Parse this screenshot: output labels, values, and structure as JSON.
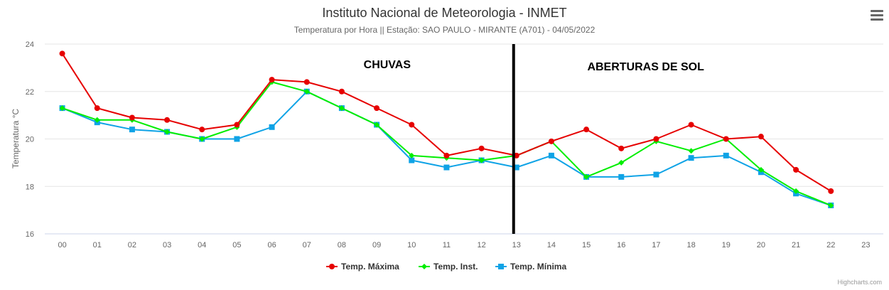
{
  "header": {
    "title": "Instituto Nacional de Meteorologia - INMET",
    "subtitle": "Temperatura por Hora || Estação: SAO PAULO - MIRANTE (A701) - 04/05/2022"
  },
  "credits": "Highcharts.com",
  "menu": {
    "icon": "hamburger-menu-icon"
  },
  "annotations": [
    {
      "text": "CHUVAS"
    },
    {
      "text": "ABERTURAS DE SOL"
    }
  ],
  "colors": {
    "max": "#e60000",
    "inst": "#00ee00",
    "min": "#0fa3e6",
    "divider": "#000000",
    "grid": "#e6e6e6"
  },
  "chart_data": {
    "type": "line",
    "title": "Instituto Nacional de Meteorologia - INMET",
    "subtitle": "Temperatura por Hora || Estação: SAO PAULO - MIRANTE (A701) - 04/05/2022",
    "xlabel": "",
    "ylabel": "Temperatura °C",
    "categories": [
      "00",
      "01",
      "02",
      "03",
      "04",
      "05",
      "06",
      "07",
      "08",
      "09",
      "10",
      "11",
      "12",
      "13",
      "14",
      "15",
      "16",
      "17",
      "18",
      "19",
      "20",
      "21",
      "22",
      "23"
    ],
    "ylim": [
      16,
      24
    ],
    "yticks": [
      16,
      18,
      20,
      22,
      24
    ],
    "grid": true,
    "legend_position": "bottom-center",
    "divider_at": "13",
    "series": [
      {
        "name": "Temp. Máxima",
        "color": "#e60000",
        "marker": "circle",
        "values": [
          23.6,
          21.3,
          20.9,
          20.8,
          20.4,
          20.6,
          22.5,
          22.4,
          22.0,
          21.3,
          20.6,
          19.3,
          19.6,
          19.3,
          19.9,
          20.4,
          19.6,
          20.0,
          20.6,
          20.0,
          20.1,
          18.7,
          17.8,
          null
        ]
      },
      {
        "name": "Temp. Inst.",
        "color": "#00ee00",
        "marker": "diamond",
        "values": [
          21.3,
          20.8,
          20.8,
          20.3,
          20.0,
          20.5,
          22.4,
          22.0,
          21.3,
          20.6,
          19.3,
          19.2,
          19.1,
          19.3,
          19.9,
          18.4,
          19.0,
          19.9,
          19.5,
          20.0,
          18.7,
          17.8,
          17.2,
          null
        ]
      },
      {
        "name": "Temp. Mínima",
        "color": "#0fa3e6",
        "marker": "square",
        "values": [
          21.3,
          20.7,
          20.4,
          20.3,
          20.0,
          20.0,
          20.5,
          22.0,
          21.3,
          20.6,
          19.1,
          18.8,
          19.1,
          18.8,
          19.3,
          18.4,
          18.4,
          18.5,
          19.2,
          19.3,
          18.6,
          17.7,
          17.2,
          null
        ]
      }
    ]
  }
}
